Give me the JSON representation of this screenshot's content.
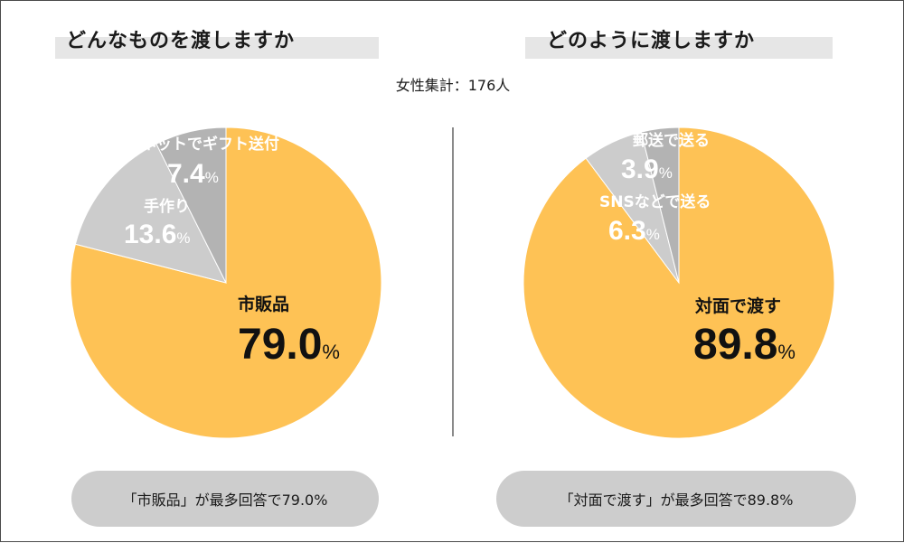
{
  "header": {
    "left_title": "どんなものを渡しますか",
    "right_title": "どのように渡しますか",
    "subtitle": "女性集計：176人"
  },
  "colors": {
    "major": "#fec255",
    "minor_light": "#cccccc",
    "minor_dark": "#b3b3b3",
    "text_dark": "#111111",
    "text_light": "#ffffff"
  },
  "chart_data": [
    {
      "type": "pie",
      "title": "どんなものを渡しますか",
      "slices": [
        {
          "label": "市販品",
          "value": 79.0,
          "display": "79.0",
          "unit": "%"
        },
        {
          "label": "手作り",
          "value": 13.6,
          "display": "13.6",
          "unit": "%"
        },
        {
          "label": "ネットでギフト送付",
          "value": 7.4,
          "display": "7.4",
          "unit": "%"
        }
      ],
      "summary": "「市販品」が最多回答で79.0%"
    },
    {
      "type": "pie",
      "title": "どのように渡しますか",
      "slices": [
        {
          "label": "対面で渡す",
          "value": 89.8,
          "display": "89.8",
          "unit": "%"
        },
        {
          "label": "SNSなどで送る",
          "value": 6.3,
          "display": "6.3",
          "unit": "%"
        },
        {
          "label": "郵送で送る",
          "value": 3.9,
          "display": "3.9",
          "unit": "%"
        }
      ],
      "summary": "「対面で渡す」が最多回答で89.8%"
    }
  ]
}
